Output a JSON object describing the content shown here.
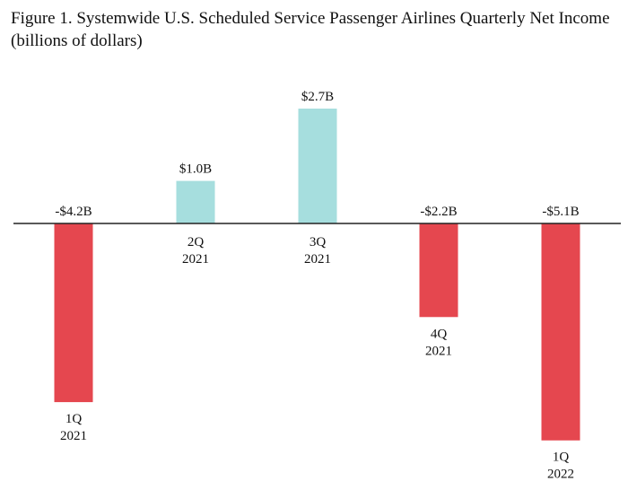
{
  "title_line1": "Figure 1. Systemwide U.S. Scheduled Service Passenger Airlines Quarterly Net Income",
  "title_line2": "(billions of dollars)",
  "chart_data": {
    "type": "bar",
    "title": "Figure 1. Systemwide U.S. Scheduled Service Passenger Airlines Quarterly Net Income",
    "subtitle": "(billions of dollars)",
    "xlabel": "",
    "ylabel": "",
    "grid": false,
    "legend": "none",
    "categories": [
      {
        "quarter": "1Q",
        "year": "2021"
      },
      {
        "quarter": "2Q",
        "year": "2021"
      },
      {
        "quarter": "3Q",
        "year": "2021"
      },
      {
        "quarter": "4Q",
        "year": "2021"
      },
      {
        "quarter": "1Q",
        "year": "2022"
      }
    ],
    "values": [
      -4.2,
      1.0,
      2.7,
      -2.2,
      -5.1
    ],
    "data_labels": [
      "-$4.2B",
      "$1.0B",
      "$2.7B",
      "-$2.2B",
      "-$5.1B"
    ],
    "ylim": [
      -5.1,
      2.7
    ],
    "colors": {
      "positive": "#a6dede",
      "negative": "#e5474f",
      "axis": "#222222"
    }
  }
}
